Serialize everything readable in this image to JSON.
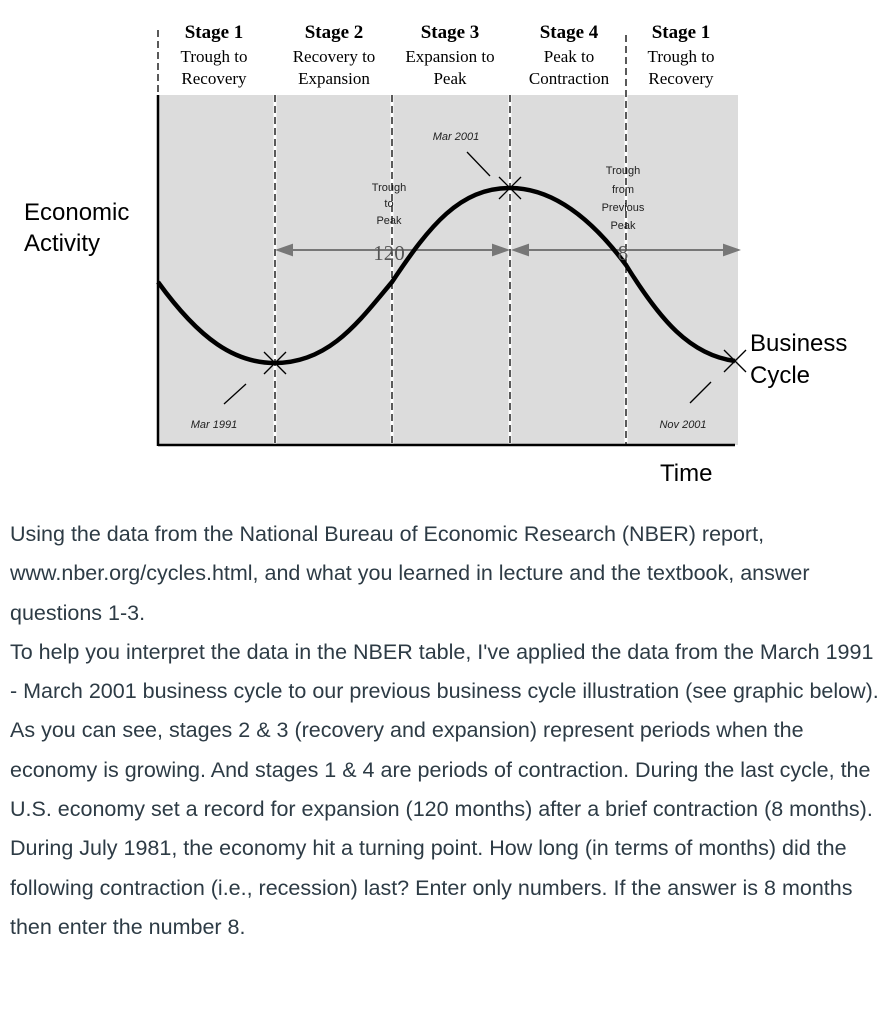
{
  "diagram": {
    "stages": [
      {
        "title": "Stage 1",
        "line1": "Trough to",
        "line2": "Recovery"
      },
      {
        "title": "Stage 2",
        "line1": "Recovery to",
        "line2": "Expansion"
      },
      {
        "title": "Stage 3",
        "line1": "Expansion to",
        "line2": "Peak"
      },
      {
        "title": "Stage 4",
        "line1": "Peak to",
        "line2": "Contraction"
      },
      {
        "title": "Stage 1",
        "line1": "Trough to",
        "line2": "Recovery"
      }
    ],
    "y_label": [
      "Economic",
      "Activity"
    ],
    "x_label": "Time",
    "curve_label": [
      "Business",
      "Cycle"
    ],
    "peak_date": "Mar 2001",
    "trough_date_left": "Mar 1991",
    "trough_date_right": "Nov 2001",
    "trough_to_peak": [
      "Trough",
      "to",
      "Peak"
    ],
    "trough_to_peak_value": "120",
    "trough_from_peak": [
      "Trough",
      "from",
      "Previous",
      "Peak"
    ],
    "trough_from_peak_value": "8",
    "colors": {
      "background": "#dcdcdc",
      "curve": "#000000",
      "arrow": "#777777"
    }
  },
  "question": {
    "paragraphs": [
      "Using the data from the National Bureau of Economic Research (NBER) report, www.nber.org/cycles.html, and what you learned in lecture and the textbook, answer questions 1-3.",
      "To help you interpret the data in the NBER table, I've applied the data from the March 1991 - March 2001 business cycle to our previous business cycle illustration (see graphic below).",
      "As you can see, stages 2 & 3 (recovery and expansion) represent periods when the economy is growing. And stages 1 & 4 are periods of contraction. During the last cycle, the U.S. economy set a record for expansion (120 months) after a brief contraction (8 months).",
      "During July 1981, the economy hit a turning point. How long (in terms of months) did the following contraction (i.e., recession) last? Enter only numbers. If the answer is 8 months then enter the number 8."
    ]
  }
}
